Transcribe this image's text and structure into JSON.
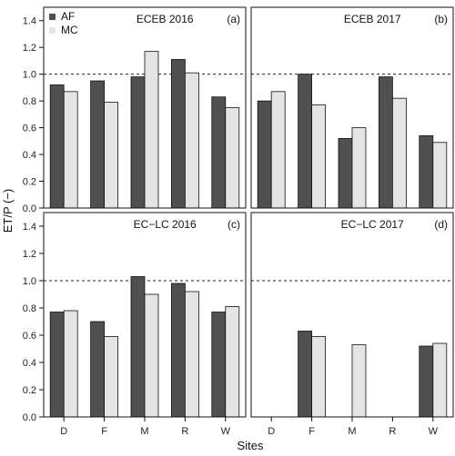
{
  "colors": {
    "AF": "#505050",
    "MC": "#e4e4e4",
    "stroke": "#111111"
  },
  "chart_data": {
    "type": "bar",
    "xlabel": "Sites",
    "ylabel": "ET/P (−)",
    "ylim": [
      0,
      1.5
    ],
    "yticks": [
      "0.0",
      "0.2",
      "0.4",
      "0.6",
      "0.8",
      "1.0",
      "1.2",
      "1.4"
    ],
    "reference_line": 1.0,
    "grid": false,
    "legend": {
      "placement": "top-left of panel (a)",
      "entries": [
        {
          "name": "AF",
          "color": "#505050"
        },
        {
          "name": "MC",
          "color": "#e4e4e4"
        }
      ]
    },
    "categories": [
      "D",
      "F",
      "M",
      "R",
      "W"
    ],
    "panels": [
      {
        "title": "ECEB 2016",
        "letter": "(a)",
        "series": [
          {
            "name": "AF",
            "values": [
              0.92,
              0.95,
              0.98,
              1.11,
              0.83
            ]
          },
          {
            "name": "MC",
            "values": [
              0.87,
              0.79,
              1.17,
              1.01,
              0.75
            ]
          }
        ]
      },
      {
        "title": "ECEB 2017",
        "letter": "(b)",
        "series": [
          {
            "name": "AF",
            "values": [
              0.8,
              1.0,
              0.52,
              0.98,
              0.54
            ]
          },
          {
            "name": "MC",
            "values": [
              0.87,
              0.77,
              0.6,
              0.82,
              0.49
            ]
          }
        ]
      },
      {
        "title": "EC−LC 2016",
        "letter": "(c)",
        "series": [
          {
            "name": "AF",
            "values": [
              0.77,
              0.7,
              1.03,
              0.98,
              0.77
            ]
          },
          {
            "name": "MC",
            "values": [
              0.78,
              0.59,
              0.9,
              0.92,
              0.81
            ]
          }
        ]
      },
      {
        "title": "EC−LC 2017",
        "letter": "(d)",
        "series": [
          {
            "name": "AF",
            "values": [
              null,
              0.63,
              null,
              null,
              0.52
            ]
          },
          {
            "name": "MC",
            "values": [
              null,
              0.59,
              0.53,
              null,
              0.54
            ]
          }
        ]
      }
    ]
  }
}
